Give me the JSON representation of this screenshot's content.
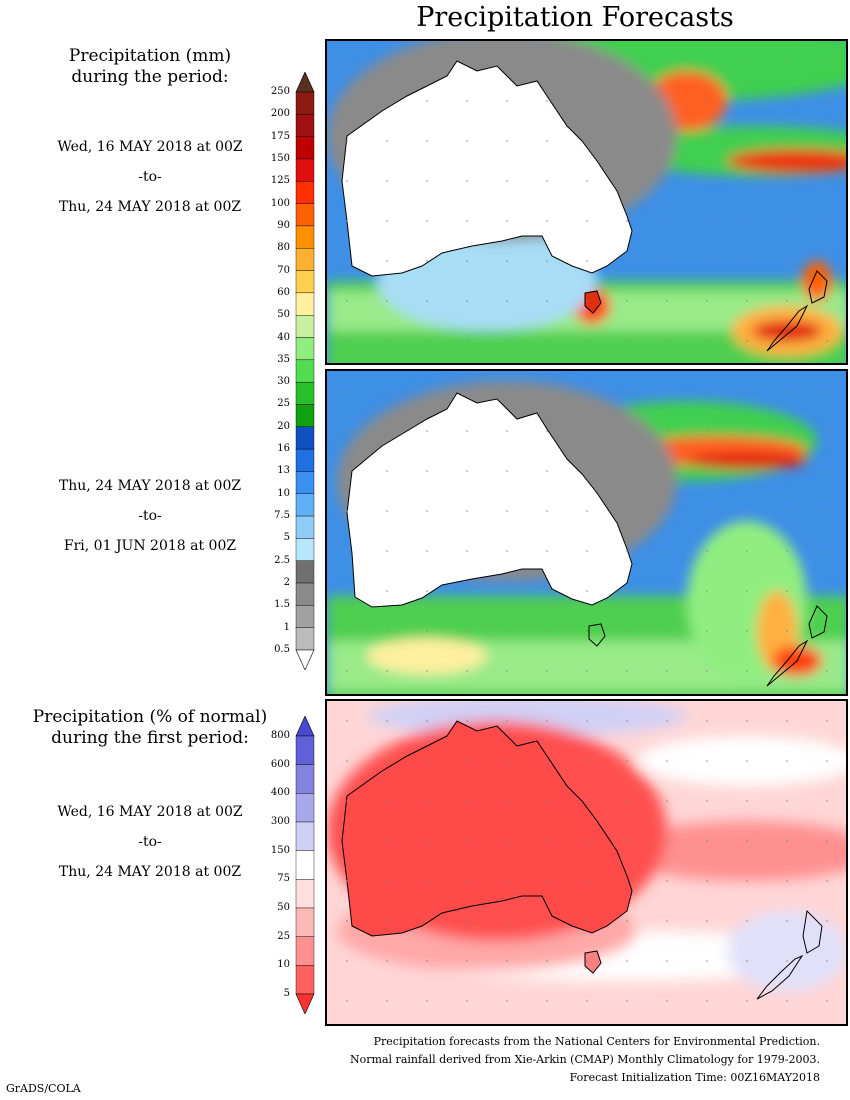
{
  "title": "Precipitation Forecasts",
  "panel1": {
    "heading_line1": "Precipitation (mm)",
    "heading_line2": "during the period:",
    "start": "Wed, 16 MAY 2018 at 00Z",
    "to": "-to-",
    "end": "Thu, 24 MAY 2018 at 00Z"
  },
  "panel2": {
    "start": "Thu, 24 MAY 2018 at 00Z",
    "to": "-to-",
    "end": "Fri, 01 JUN 2018 at 00Z"
  },
  "panel3": {
    "heading_line1": "Precipitation (% of normal)",
    "heading_line2": "during the first period:",
    "start": "Wed, 16 MAY 2018 at 00Z",
    "to": "-to-",
    "end": "Thu, 24 MAY 2018 at 00Z"
  },
  "mm_scale": {
    "levels": [
      "250",
      "200",
      "175",
      "150",
      "125",
      "100",
      "90",
      "80",
      "70",
      "60",
      "50",
      "40",
      "35",
      "30",
      "25",
      "20",
      "16",
      "13",
      "10",
      "7.5",
      "5",
      "2.5",
      "2",
      "1.5",
      "1",
      "0.5"
    ],
    "colors": [
      "#8b1a10",
      "#a01010",
      "#c00000",
      "#e01010",
      "#ff3000",
      "#ff6000",
      "#ff9000",
      "#ffb030",
      "#ffd050",
      "#fff0a0",
      "#c8f0a0",
      "#90ee80",
      "#50dd50",
      "#28c028",
      "#10a010",
      "#1050c0",
      "#2070e0",
      "#3a90f0",
      "#60b0f8",
      "#90ccf8",
      "#b8e6fa",
      "#707070",
      "#8a8a8a",
      "#a2a2a2",
      "#bcbcbc"
    ],
    "top_color": "#5a3020"
  },
  "pct_scale": {
    "levels": [
      "800",
      "600",
      "400",
      "300",
      "150",
      "75",
      "50",
      "25",
      "10",
      "5"
    ],
    "colors": [
      "#6060d8",
      "#8484e0",
      "#a8a8ec",
      "#d0d0f6",
      "#ffffff",
      "#ffdede",
      "#ffb8b8",
      "#ff9090",
      "#ff6060"
    ],
    "top_color": "#4848d0",
    "bottom_color": "#ff3030"
  },
  "footer": {
    "line1": "Precipitation forecasts from the National Centers for Environmental Prediction.",
    "line2": "Normal rainfall derived from Xie-Arkin (CMAP) Monthly Climatology for 1979-2003.",
    "line3": "Forecast Initialization Time: 00Z16MAY2018"
  },
  "credit": "GrADS/COLA"
}
